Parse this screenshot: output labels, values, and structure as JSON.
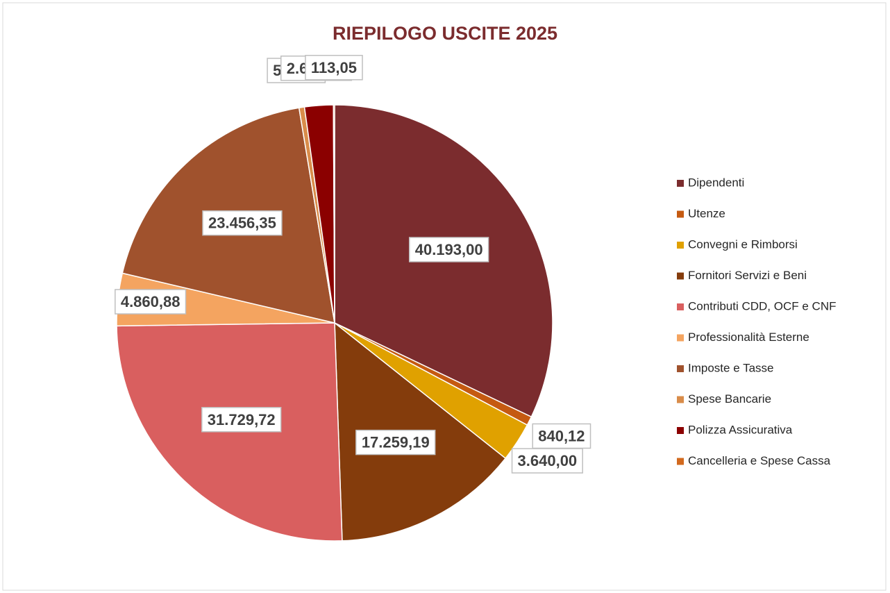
{
  "chart_data": {
    "type": "pie",
    "title": "RIEPILOGO USCITE 2025",
    "categories": [
      "Dipendenti",
      "Utenze",
      "Convegni e Rimborsi",
      "Fornitori Servizi e Beni",
      "Contributi CDD, OCF e CNF",
      "Professionalità Esterne",
      "Imposte e Tasse",
      "Spese Bancarie",
      "Polizza Assicurativa",
      "Cancelleria e Spese Cassa"
    ],
    "values": [
      40193.0,
      840.12,
      3640.0,
      17259.19,
      31729.72,
      4860.88,
      23456.35,
      500.07,
      2658.16,
      113.05
    ],
    "value_labels": [
      "40.193,00",
      "840,12",
      "3.640,00",
      "17.259,19",
      "31.729,72",
      "4.860,88",
      "23.456,35",
      "500,07",
      "2.658,16",
      "113,05"
    ],
    "colors": [
      "#7b2c2e",
      "#c55a11",
      "#e0a100",
      "#843c0c",
      "#d95f5f",
      "#f4a460",
      "#a0522d",
      "#d98c4a",
      "#8b0000",
      "#d2691e"
    ],
    "legend": "right"
  }
}
